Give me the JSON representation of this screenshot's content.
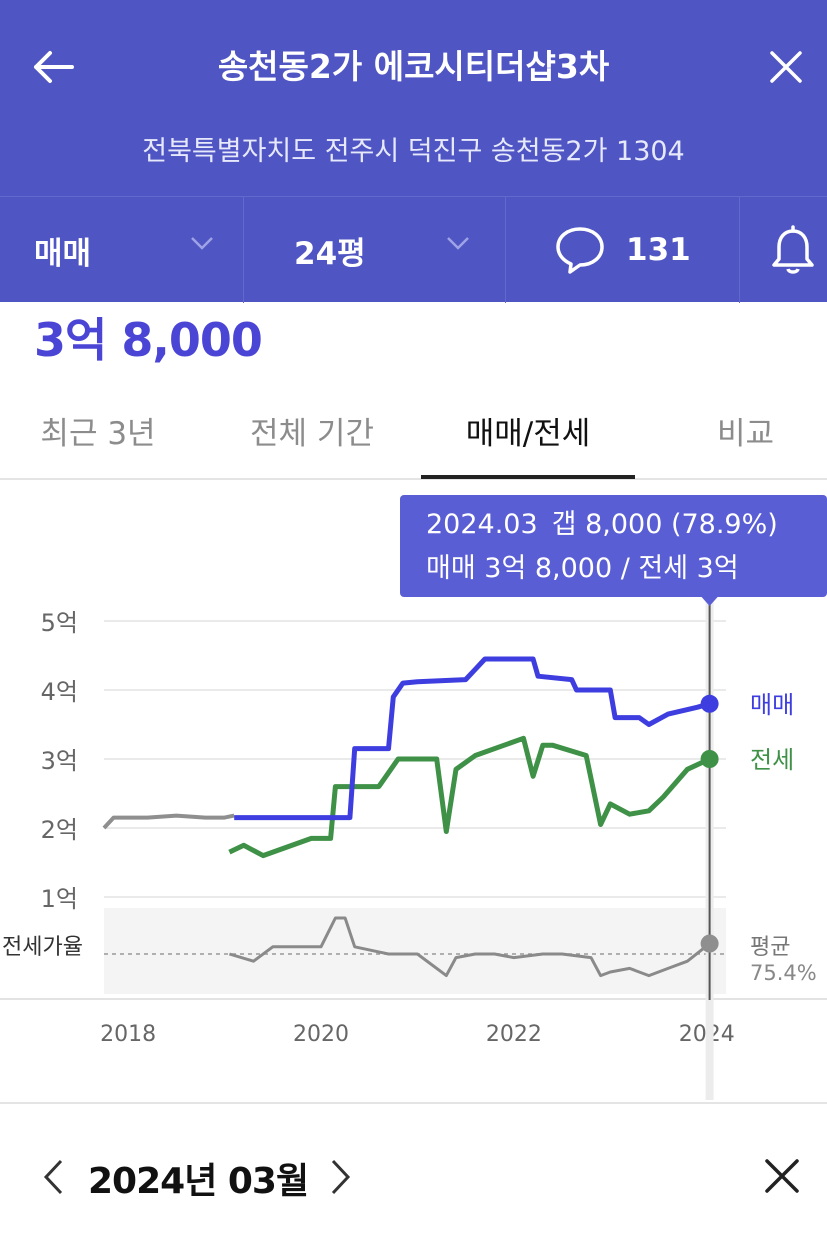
{
  "header": {
    "title": "송천동2가 에코시티더샵3차",
    "address": "전북특별자치도 전주시 덕진구 송천동2가 1304",
    "back_icon": "arrow-left-icon",
    "close_icon": "close-icon",
    "background": "#4f55c2"
  },
  "filters": {
    "trade_type": "매매",
    "size": "24평",
    "comment_count": "131",
    "comment_icon": "speech-bubble-icon",
    "alert_icon": "bell-icon"
  },
  "price": "3억 8,000",
  "tabs": [
    {
      "label": "최근 3년",
      "active": false
    },
    {
      "label": "전체 기간",
      "active": false
    },
    {
      "label": "매매/전세",
      "active": true
    },
    {
      "label": "비교",
      "active": false
    }
  ],
  "tooltip": {
    "line1_date": "2024.03",
    "line1_gap": "갭 8,000 (78.9%)",
    "line2": "매매 3억 8,000 / 전세 3억"
  },
  "chart_data": {
    "type": "line",
    "x_ticks": [
      "2018",
      "2020",
      "2022",
      "2024"
    ],
    "xlim": [
      2017.75,
      2024.2
    ],
    "y_ticks": [
      "5억",
      "4억",
      "3억",
      "2억",
      "1억"
    ],
    "y_tick_values": [
      5,
      4,
      3,
      2,
      1
    ],
    "ylim": [
      0,
      5
    ],
    "ratio_label": "전세가율",
    "average_label": "평균",
    "average_value": "75.4%",
    "series": [
      {
        "name": "매매",
        "color": "#3e3ee0",
        "x": [
          2019.1,
          2019.3,
          2019.5,
          2019.9,
          2020.3,
          2020.35,
          2020.7,
          2020.75,
          2020.85,
          2021.0,
          2021.5,
          2021.6,
          2021.7,
          2022.2,
          2022.25,
          2022.6,
          2022.65,
          2023.0,
          2023.05,
          2023.3,
          2023.4,
          2023.6,
          2023.9,
          2024.03
        ],
        "values": [
          2.15,
          2.15,
          2.15,
          2.15,
          2.15,
          3.15,
          3.15,
          3.9,
          4.1,
          4.12,
          4.15,
          4.3,
          4.45,
          4.45,
          4.2,
          4.15,
          4.0,
          4.0,
          3.6,
          3.6,
          3.5,
          3.65,
          3.75,
          3.8
        ]
      },
      {
        "name": "전세",
        "color": "#3e9146",
        "x": [
          2019.05,
          2019.2,
          2019.4,
          2019.9,
          2020.1,
          2020.15,
          2020.6,
          2020.8,
          2021.2,
          2021.3,
          2021.4,
          2021.6,
          2021.9,
          2022.1,
          2022.2,
          2022.3,
          2022.4,
          2022.75,
          2022.9,
          2023.0,
          2023.2,
          2023.4,
          2023.55,
          2023.8,
          2024.03
        ],
        "values": [
          1.65,
          1.75,
          1.6,
          1.85,
          1.85,
          2.6,
          2.6,
          3.0,
          3.0,
          1.95,
          2.85,
          3.05,
          3.2,
          3.3,
          2.75,
          3.2,
          3.2,
          3.05,
          2.05,
          2.35,
          2.2,
          2.25,
          2.45,
          2.85,
          3.0
        ]
      },
      {
        "name": "전세가율",
        "color": "#8a8a8a",
        "x": [
          2019.05,
          2019.3,
          2019.5,
          2020.0,
          2020.15,
          2020.25,
          2020.35,
          2020.7,
          2021.0,
          2021.3,
          2021.4,
          2021.6,
          2021.8,
          2022.0,
          2022.3,
          2022.5,
          2022.8,
          2022.9,
          2023.0,
          2023.2,
          2023.4,
          2023.6,
          2023.8,
          2024.03
        ],
        "values": [
          76,
          74,
          78,
          78,
          86,
          86,
          78,
          76,
          76,
          70,
          75,
          76,
          76,
          75,
          76,
          76,
          75,
          70,
          71,
          72,
          70,
          72,
          74,
          78.9
        ]
      }
    ],
    "legacy_series_color": "#8f8f8f",
    "legacy_series": {
      "x": [
        2017.75,
        2017.85,
        2018.2,
        2018.5,
        2018.8,
        2019.0,
        2019.1
      ],
      "values": [
        2.0,
        2.15,
        2.15,
        2.18,
        2.15,
        2.15,
        2.18
      ]
    },
    "legend_labels": [
      "매매",
      "전세"
    ],
    "marker_x": 2024.03,
    "grid": true
  },
  "bottom": {
    "month_label": "2024년 03월",
    "prev_icon": "chevron-left-icon",
    "next_icon": "chevron-right-icon",
    "close_icon": "close-icon"
  }
}
